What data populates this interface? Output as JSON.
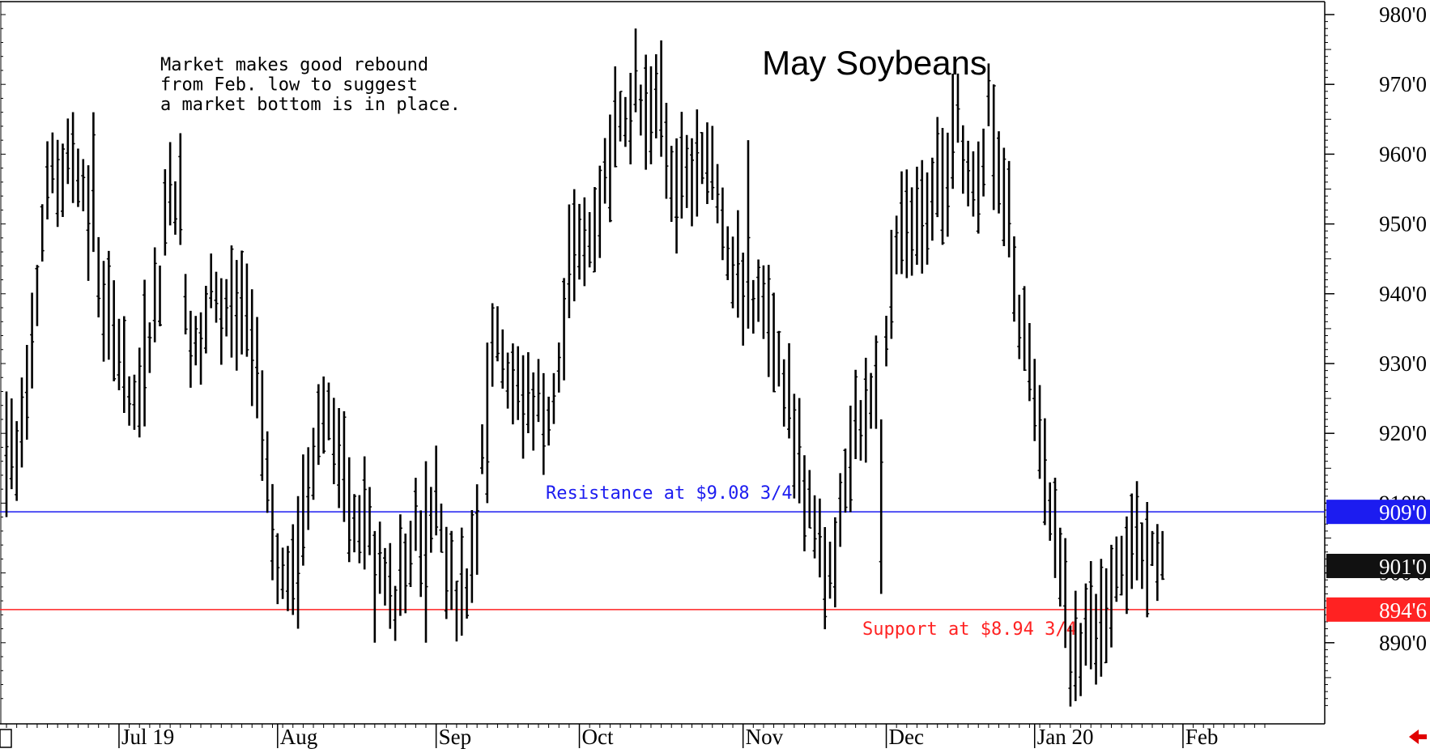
{
  "chart_data": {
    "type": "ohlc",
    "title": "May Soybeans",
    "annotation": [
      "Market makes good rebound",
      "from Feb. low to suggest",
      "a market bottom is in place."
    ],
    "y_range": [
      880,
      982
    ],
    "y_ticks": [
      {
        "value": 980,
        "label": "980'0"
      },
      {
        "value": 970,
        "label": "970'0"
      },
      {
        "value": 960,
        "label": "960'0"
      },
      {
        "value": 950,
        "label": "950'0"
      },
      {
        "value": 940,
        "label": "940'0"
      },
      {
        "value": 930,
        "label": "930'0"
      },
      {
        "value": 920,
        "label": "920'0"
      },
      {
        "value": 910,
        "label": "910'0"
      },
      {
        "value": 900,
        "label": "900'0"
      },
      {
        "value": 890,
        "label": "890'0"
      }
    ],
    "x_labels": [
      "Jul 19",
      "Aug",
      "Sep",
      "Oct",
      "Nov",
      "Dec",
      "Jan 20",
      "Feb"
    ],
    "x_label_index": [
      22,
      53,
      84,
      112,
      144,
      172,
      201,
      230
    ],
    "n_bars": 247,
    "levels": [
      {
        "name": "resistance",
        "value": 908.75,
        "label": "Resistance at $9.08 3/4",
        "tag": "909'0",
        "color": "#1c1cf0"
      },
      {
        "name": "last",
        "value": 901.0,
        "label": "",
        "tag": "901'0",
        "color": "#111111"
      },
      {
        "name": "support",
        "value": 894.75,
        "label": "Support at $8.94 3/4",
        "tag": "894'6",
        "color": "#ff2222"
      }
    ],
    "keypoints": [
      [
        0,
        914
      ],
      [
        2,
        916
      ],
      [
        4,
        928
      ],
      [
        6,
        942
      ],
      [
        8,
        956
      ],
      [
        11,
        957
      ],
      [
        13,
        960
      ],
      [
        15,
        956
      ],
      [
        17,
        946
      ],
      [
        20,
        936
      ],
      [
        22,
        932
      ],
      [
        25,
        922
      ],
      [
        28,
        934
      ],
      [
        30,
        942
      ],
      [
        32,
        958
      ],
      [
        34,
        948
      ],
      [
        36,
        934
      ],
      [
        38,
        930
      ],
      [
        40,
        944
      ],
      [
        42,
        934
      ],
      [
        44,
        938
      ],
      [
        47,
        936
      ],
      [
        49,
        928
      ],
      [
        51,
        912
      ],
      [
        53,
        903
      ],
      [
        55,
        898
      ],
      [
        57,
        904
      ],
      [
        60,
        918
      ],
      [
        62,
        924
      ],
      [
        64,
        920
      ],
      [
        66,
        913
      ],
      [
        68,
        906
      ],
      [
        70,
        908
      ],
      [
        72,
        906
      ],
      [
        74,
        900
      ],
      [
        76,
        896
      ],
      [
        78,
        902
      ],
      [
        80,
        906
      ],
      [
        82,
        904
      ],
      [
        84,
        911
      ],
      [
        86,
        902
      ],
      [
        88,
        897
      ],
      [
        90,
        898
      ],
      [
        92,
        908
      ],
      [
        94,
        930
      ],
      [
        96,
        935
      ],
      [
        98,
        928
      ],
      [
        100,
        926
      ],
      [
        102,
        924
      ],
      [
        104,
        925
      ],
      [
        106,
        922
      ],
      [
        108,
        928
      ],
      [
        110,
        946
      ],
      [
        112,
        946
      ],
      [
        114,
        948
      ],
      [
        116,
        953
      ],
      [
        118,
        960
      ],
      [
        120,
        967
      ],
      [
        122,
        967
      ],
      [
        124,
        966
      ],
      [
        126,
        968
      ],
      [
        128,
        966
      ],
      [
        130,
        957
      ],
      [
        132,
        956
      ],
      [
        134,
        957
      ],
      [
        136,
        958
      ],
      [
        138,
        960
      ],
      [
        140,
        952
      ],
      [
        142,
        943
      ],
      [
        144,
        941
      ],
      [
        146,
        940
      ],
      [
        148,
        938
      ],
      [
        150,
        932
      ],
      [
        152,
        928
      ],
      [
        154,
        920
      ],
      [
        156,
        912
      ],
      [
        158,
        906
      ],
      [
        160,
        900
      ],
      [
        162,
        904
      ],
      [
        164,
        915
      ],
      [
        166,
        922
      ],
      [
        168,
        922
      ],
      [
        170,
        925
      ],
      [
        172,
        934
      ],
      [
        174,
        948
      ],
      [
        176,
        950
      ],
      [
        178,
        951
      ],
      [
        180,
        952
      ],
      [
        182,
        956
      ],
      [
        184,
        958
      ],
      [
        186,
        966
      ],
      [
        188,
        957
      ],
      [
        190,
        957
      ],
      [
        192,
        956
      ],
      [
        194,
        955
      ],
      [
        196,
        951
      ],
      [
        198,
        936
      ],
      [
        200,
        930
      ],
      [
        202,
        918
      ],
      [
        204,
        910
      ],
      [
        206,
        903
      ],
      [
        208,
        888
      ],
      [
        210,
        890
      ],
      [
        212,
        892
      ],
      [
        214,
        896
      ],
      [
        216,
        896
      ],
      [
        218,
        901
      ],
      [
        220,
        906
      ],
      [
        222,
        902
      ],
      [
        224,
        901
      ]
    ],
    "range_override": [
      [
        0,
        908,
        926
      ],
      [
        1,
        912,
        925
      ],
      [
        17,
        946,
        966
      ],
      [
        27,
        921,
        942
      ],
      [
        34,
        947,
        963
      ],
      [
        57,
        892,
        911
      ],
      [
        72,
        890,
        906
      ],
      [
        82,
        890,
        916
      ],
      [
        94,
        910,
        933
      ],
      [
        123,
        966,
        978
      ],
      [
        145,
        935,
        962
      ],
      [
        171,
        897,
        922
      ],
      [
        192,
        964,
        973
      ],
      [
        193,
        952,
        970
      ],
      [
        213,
        884,
        897
      ],
      [
        224,
        901,
        906
      ],
      [
        225,
        896,
        907
      ],
      [
        226,
        899,
        906
      ]
    ]
  }
}
